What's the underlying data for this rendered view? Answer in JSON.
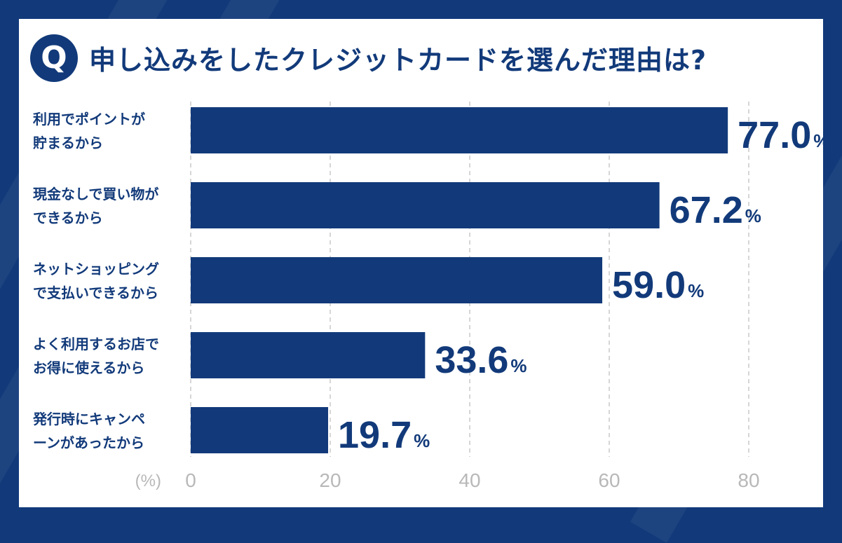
{
  "badge": "Q",
  "title": "申し込みをしたクレジットカードを選んだ理由は?",
  "colors": {
    "bar": "#123a7a",
    "text": "#123a7a",
    "grid": "#c8c8c8",
    "axis_text": "#b8b8b8",
    "frame": "#123a7a"
  },
  "chart_data": {
    "type": "bar",
    "orientation": "horizontal",
    "categories": [
      [
        "利用でポイントが",
        "貯まるから"
      ],
      [
        "現金なしで買い物が",
        "できるから"
      ],
      [
        "ネットショッピング",
        "で支払いできるから"
      ],
      [
        "よく利用するお店で",
        "お得に使えるから"
      ],
      [
        "発行時にキャンペ",
        "ーンがあったから"
      ]
    ],
    "values": [
      77.0,
      67.2,
      59.0,
      33.6,
      19.7
    ],
    "value_labels": [
      "77.0",
      "67.2",
      "59.0",
      "33.6",
      "19.7"
    ],
    "value_suffix": "%",
    "xlim": [
      0,
      80
    ],
    "xticks": [
      "0",
      "20",
      "40",
      "60",
      "80"
    ],
    "unit_label": "(%)",
    "grid": "vertical dashed"
  }
}
